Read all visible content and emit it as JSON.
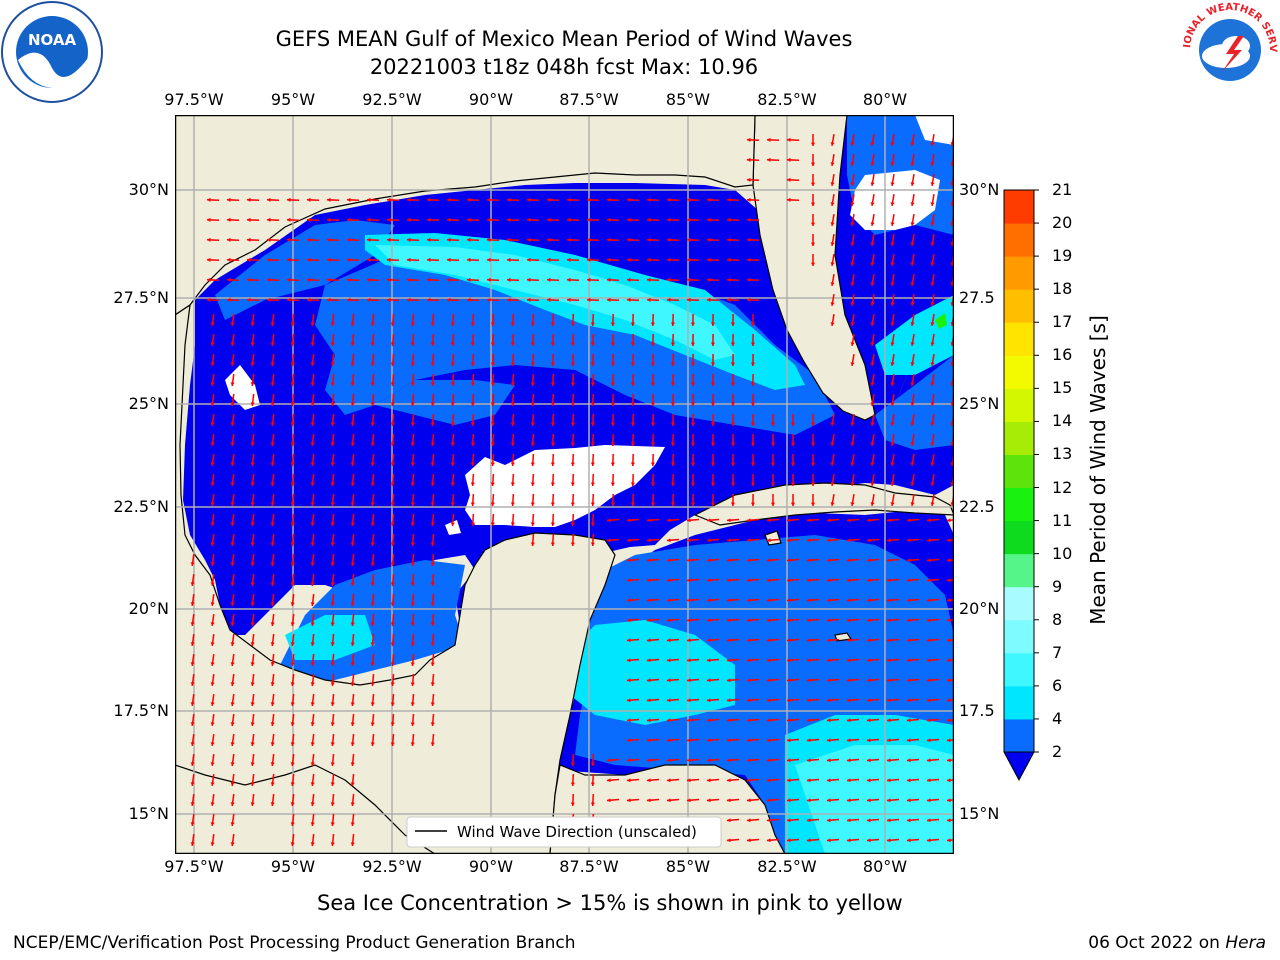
{
  "header": {
    "title": "GEFS MEAN Gulf of Mexico Mean Period of Wind Waves",
    "subtitle": "20221003 t18z 048h fcst   Max: 10.96",
    "noaa_logo_text": "NOAA",
    "nws_logo_text": "NATIONAL WEATHER SERVICE"
  },
  "map": {
    "lon_labels": [
      "97.5°W",
      "95°W",
      "92.5°W",
      "90°W",
      "87.5°W",
      "85°W",
      "82.5°W",
      "80°W"
    ],
    "lat_labels": [
      "30°N",
      "27.5°N",
      "25°N",
      "22.5°N",
      "20°N",
      "17.5°N",
      "15°N"
    ],
    "lat_labels_right": [
      "30°N",
      "27.5",
      "25°N",
      "22.5",
      "20°N",
      "17.5",
      "15°N"
    ],
    "legend_label": "Wind Wave Direction (unscaled)",
    "land_color": "#efedd9",
    "arrow_color": "#ff0000"
  },
  "colorbar": {
    "label": "Mean Period of Wind Waves [s]",
    "ticks": [
      "2",
      "4",
      "6",
      "7",
      "8",
      "9",
      "10",
      "11",
      "12",
      "13",
      "14",
      "15",
      "16",
      "17",
      "18",
      "19",
      "20",
      "21"
    ],
    "colors": [
      "#0a6bff",
      "#00e6ff",
      "#3ff8ff",
      "#7efbff",
      "#a8fcff",
      "#55f58a",
      "#0edb1e",
      "#19f20e",
      "#5de40a",
      "#a6ec06",
      "#d2f700",
      "#f3fa00",
      "#ffe400",
      "#ffbf00",
      "#ff9a00",
      "#ff6f00",
      "#ff3c00",
      "#ff0a00"
    ],
    "underflow_color": "#0000ee"
  },
  "footer": {
    "note": "Sea Ice Concentration > 15% is shown in pink to yellow",
    "credit": "NCEP/EMC/Verification Post Processing Product Generation Branch",
    "date": "06 Oct 2022 on ",
    "machine": "Hera"
  }
}
